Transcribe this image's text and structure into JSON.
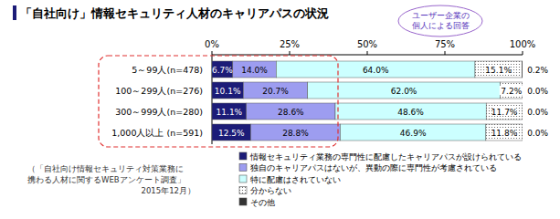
{
  "chart_data": {
    "type": "bar",
    "orientation": "horizontal",
    "stacked": true,
    "data_labels": true,
    "grid": false,
    "title": "「自社向け」情報セキュリティ人材のキャリアパスの状況",
    "annotations": [
      [
        "ユーザー企業の",
        "個人による回答"
      ],
      [
        "（「自社向け情報セキュリティ対策業務に",
        "携わる人材に関するWEBアンケート調査」",
        "2015年12月）"
      ]
    ],
    "categories": [
      "5～99人(n=478)",
      "100～299人(n=276)",
      "300～999人(n=280)",
      "1,000人以上 (n=591)"
    ],
    "xlim": [
      0,
      100
    ],
    "xticks": [
      {
        "value": 0,
        "label": "0%"
      },
      {
        "value": 25,
        "label": "25%"
      },
      {
        "value": 50,
        "label": "50%"
      },
      {
        "value": 75,
        "label": "75%"
      },
      {
        "value": 100,
        "label": "100%"
      }
    ],
    "series": [
      {
        "name": "情報セキュリティ業務の専門性に配慮したキャリアパスが設けられている",
        "color": "#1c1c78",
        "values": [
          6.7,
          10.1,
          11.1,
          12.5
        ],
        "value_labels": [
          "6.7%",
          "10.1%",
          "11.1%",
          "12.5%"
        ]
      },
      {
        "name": "独自のキャリアパスはないが、異動の際に専門性が考慮されている",
        "color": "#9d9df0",
        "values": [
          14.0,
          20.7,
          28.6,
          28.8
        ],
        "value_labels": [
          "14.0%",
          "20.7%",
          "28.6%",
          "28.8%"
        ]
      },
      {
        "name": "特に配慮はされていない",
        "color": "#ccffff",
        "values": [
          64.0,
          62.0,
          48.6,
          46.9
        ],
        "value_labels": [
          "64.0%",
          "62.0%",
          "48.6%",
          "46.9%"
        ]
      },
      {
        "name": "分からない",
        "color": "#ffffff",
        "values": [
          15.1,
          7.2,
          11.7,
          11.8
        ],
        "value_labels": [
          "15.1%",
          "7.2%",
          "11.7%",
          "11.8%"
        ]
      },
      {
        "name": "その他",
        "color": "#333333",
        "values": [
          0.2,
          0.0,
          0.0,
          0.0
        ],
        "value_labels": [
          "0.2%",
          "0.0%",
          "0.0%",
          "0.0%"
        ]
      }
    ]
  }
}
